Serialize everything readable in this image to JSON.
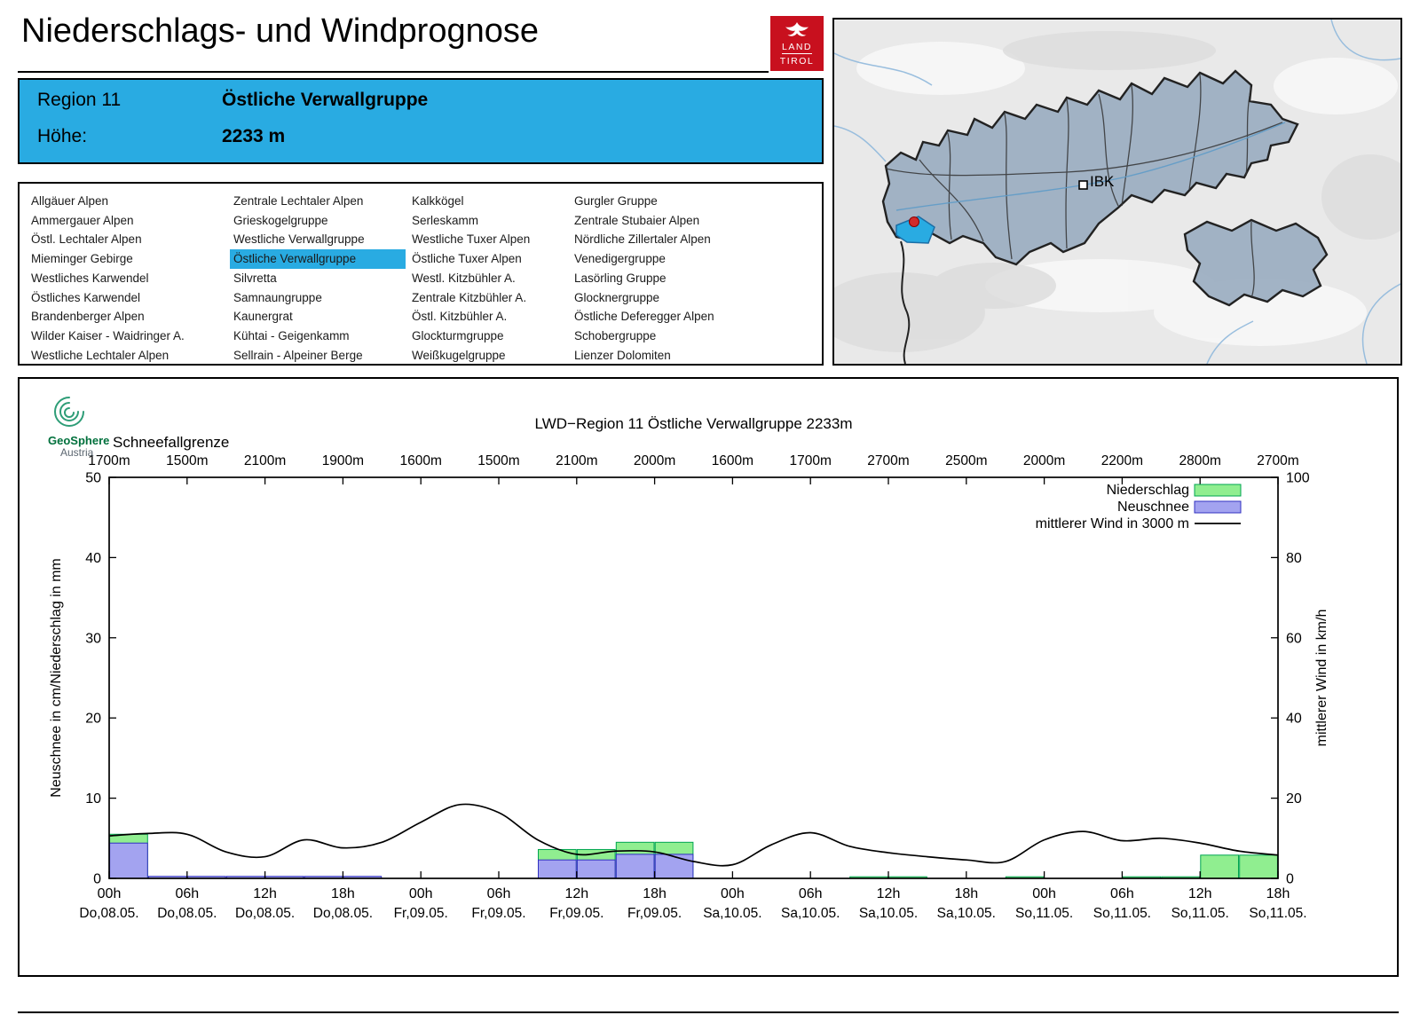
{
  "page": {
    "title": "Niederschlags- und Windprognose"
  },
  "logo": {
    "line1": "LAND",
    "line2": "TIROL"
  },
  "header": {
    "region_label": "Region 11",
    "region_name": "Östliche Verwallgruppe",
    "altitude_label": "Höhe:",
    "altitude_value": "2233 m"
  },
  "map": {
    "marker_label": "IBK"
  },
  "region_list": {
    "selected": "Östliche Verwallgruppe",
    "columns": [
      [
        "Allgäuer Alpen",
        "Ammergauer Alpen",
        "Östl. Lechtaler Alpen",
        "Mieminger Gebirge",
        "Westliches Karwendel",
        "Östliches Karwendel",
        "Brandenberger Alpen",
        "Wilder Kaiser - Waidringer A.",
        "Westliche Lechtaler Alpen"
      ],
      [
        "Zentrale Lechtaler Alpen",
        "Grieskogelgruppe",
        "Westliche Verwallgruppe",
        "Östliche Verwallgruppe",
        "Silvretta",
        "Samnaungruppe",
        "Kaunergrat",
        "Kühtai - Geigenkamm",
        "Sellrain - Alpeiner Berge"
      ],
      [
        "Kalkkögel",
        "Serleskamm",
        "Westliche Tuxer Alpen",
        "Östliche Tuxer Alpen",
        "Westl. Kitzbühler A.",
        "Zentrale Kitzbühler A.",
        "Östl. Kitzbühler A.",
        "Glockturmgruppe",
        "Weißkugelgruppe"
      ],
      [
        "Gurgler Gruppe",
        "Zentrale Stubaier Alpen",
        "Nördliche Zillertaler Alpen",
        "Venedigergruppe",
        "Lasörling Gruppe",
        "Glocknergruppe",
        "Östliche Deferegger Alpen",
        "Schobergruppe",
        "Lienzer Dolomiten"
      ]
    ]
  },
  "branding": {
    "geosphere_line1": "GeoSphere",
    "geosphere_line2": "Austria"
  },
  "colors": {
    "highlight": "#29abe2",
    "precip_fill": "#90ee90",
    "precip_border": "#00a550",
    "snow_fill": "#a3a3f0",
    "snow_border": "#3030c0",
    "wind_line": "#000000",
    "logo_red": "#c8101e",
    "map_region": "#9aacc0"
  },
  "chart_data": {
    "type": "bar",
    "title": "LWD−Region 11 Östliche Verwallgruppe 2233m",
    "snowline_label": "Schneefallgrenze",
    "snowline_values": [
      "1700m",
      "1500m",
      "2100m",
      "1900m",
      "1600m",
      "1500m",
      "2100m",
      "2000m",
      "1600m",
      "1700m",
      "2700m",
      "2500m",
      "2000m",
      "2200m",
      "2800m",
      "2700m"
    ],
    "ylabel_left": "Neuschnee in cm/Niederschlag in mm",
    "ylabel_right": "mittlerer Wind in km/h",
    "ylim_left": [
      0,
      50
    ],
    "ylim_right": [
      0,
      100
    ],
    "yticks_left": [
      0,
      10,
      20,
      30,
      40,
      50
    ],
    "yticks_right": [
      0,
      20,
      40,
      60,
      80,
      100
    ],
    "hours_total": 90,
    "slot_hours": 3,
    "x_tick_hours": [
      "00h",
      "06h",
      "12h",
      "18h",
      "00h",
      "06h",
      "12h",
      "18h",
      "00h",
      "06h",
      "12h",
      "18h",
      "00h",
      "06h",
      "12h",
      "18h"
    ],
    "x_tick_dates": [
      "Do,08.05.",
      "Do,08.05.",
      "Do,08.05.",
      "Do,08.05.",
      "Fr,09.05.",
      "Fr,09.05.",
      "Fr,09.05.",
      "Fr,09.05.",
      "Sa,10.05.",
      "Sa,10.05.",
      "Sa,10.05.",
      "Sa,10.05.",
      "So,11.05.",
      "So,11.05.",
      "So,11.05.",
      "So,11.05."
    ],
    "legend": [
      {
        "label": "Niederschlag",
        "type": "box",
        "key": "precip"
      },
      {
        "label": "Neuschnee",
        "type": "box",
        "key": "snow"
      },
      {
        "label": "mittlerer Wind in 3000 m",
        "type": "line",
        "key": "wind"
      }
    ],
    "precip_mm": [
      5.5,
      0,
      0,
      0,
      0,
      0,
      0,
      0,
      0,
      0,
      0,
      3.6,
      3.6,
      4.5,
      4.5,
      0,
      0,
      0,
      0,
      0.2,
      0.2,
      0,
      0,
      0.2,
      0,
      0,
      0.2,
      0.2,
      2.9,
      2.9
    ],
    "snow_cm": [
      4.4,
      0.25,
      0.25,
      0.25,
      0.25,
      0.25,
      0.25,
      0,
      0,
      0,
      0,
      2.3,
      2.3,
      3.0,
      3.0,
      0,
      0,
      0,
      0,
      0,
      0,
      0,
      0,
      0,
      0,
      0,
      0,
      0,
      0,
      0
    ],
    "wind_kmh": {
      "step_hours": 3,
      "values": [
        10.6,
        11.2,
        11.0,
        6.6,
        5.4,
        9.6,
        7.6,
        9.0,
        14.0,
        18.4,
        16.4,
        9.6,
        6.0,
        6.8,
        6.6,
        4.2,
        3.4,
        8.4,
        11.4,
        8.0,
        6.4,
        5.4,
        4.6,
        4.2,
        9.6,
        11.7,
        9.4,
        10.0,
        8.8,
        6.8,
        5.8
      ]
    }
  }
}
